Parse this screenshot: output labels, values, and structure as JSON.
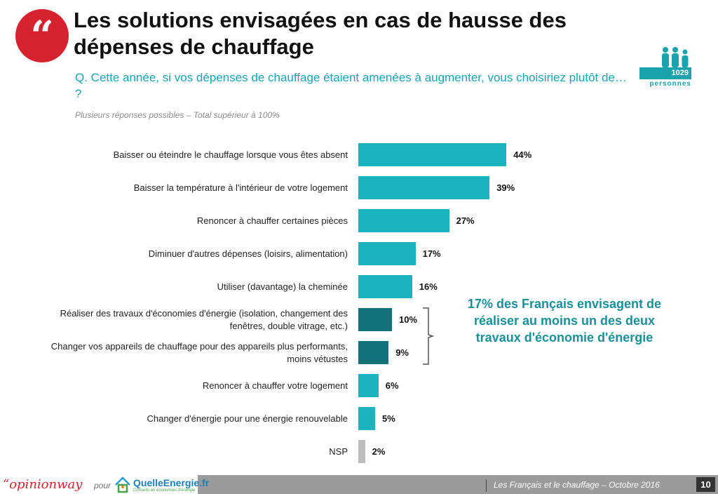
{
  "header": {
    "title": "Les solutions envisagées en cas de hausse des dépenses de chauffage",
    "question": "Q. Cette année, si vos dépenses de chauffage étaient amenées à augmenter, vous choisiriez plutôt de… ?",
    "note": "Plusieurs réponses possibles – Total supérieur à 100%",
    "quote_glyph": "“",
    "sample_count": "1029",
    "sample_label": "personnes"
  },
  "chart_data": {
    "type": "bar",
    "orientation": "horizontal",
    "categories": [
      "Baisser ou éteindre le chauffage lorsque vous êtes absent",
      "Baisser la température à l'intérieur de votre logement",
      "Renoncer à chauffer certaines pièces",
      "Diminuer d'autres dépenses (loisirs, alimentation)",
      "Utiliser (davantage) la cheminée",
      "Réaliser des travaux d'économies d'énergie (isolation, changement des fenêtres, double vitrage, etc.)",
      "Changer vos appareils de chauffage pour des appareils plus performants, moins vétustes",
      "Renoncer à chauffer votre logement",
      "Changer d'énergie pour une énergie renouvelable",
      "NSP"
    ],
    "values": [
      44,
      39,
      27,
      17,
      16,
      10,
      9,
      6,
      5,
      2
    ],
    "value_labels": [
      "44%",
      "39%",
      "27%",
      "17%",
      "16%",
      "10%",
      "9%",
      "6%",
      "5%",
      "2%"
    ],
    "bar_colors": [
      "#1bb3bd",
      "#1bb3bd",
      "#1bb3bd",
      "#1bb3bd",
      "#1bb3bd",
      "#12717a",
      "#12717a",
      "#1bb3bd",
      "#1bb3bd",
      "#bdbdbd"
    ],
    "xlim": [
      0,
      100
    ],
    "grid": false
  },
  "callout": {
    "text": "17% des Français envisagent de réaliser au moins un des deux travaux d'économie d'énergie"
  },
  "footer": {
    "brand": "“opinionway",
    "pour": "pour",
    "partner": "QuelleEnergie.fr",
    "partner_tagline": "Conseils en économies d'énergie",
    "caption": "Les Français et le chauffage – Octobre 2016",
    "page": "10"
  },
  "colors": {
    "accent": "#1bb3bd",
    "dark_accent": "#12717a",
    "brand_red": "#d6222e",
    "neutral": "#bdbdbd"
  }
}
